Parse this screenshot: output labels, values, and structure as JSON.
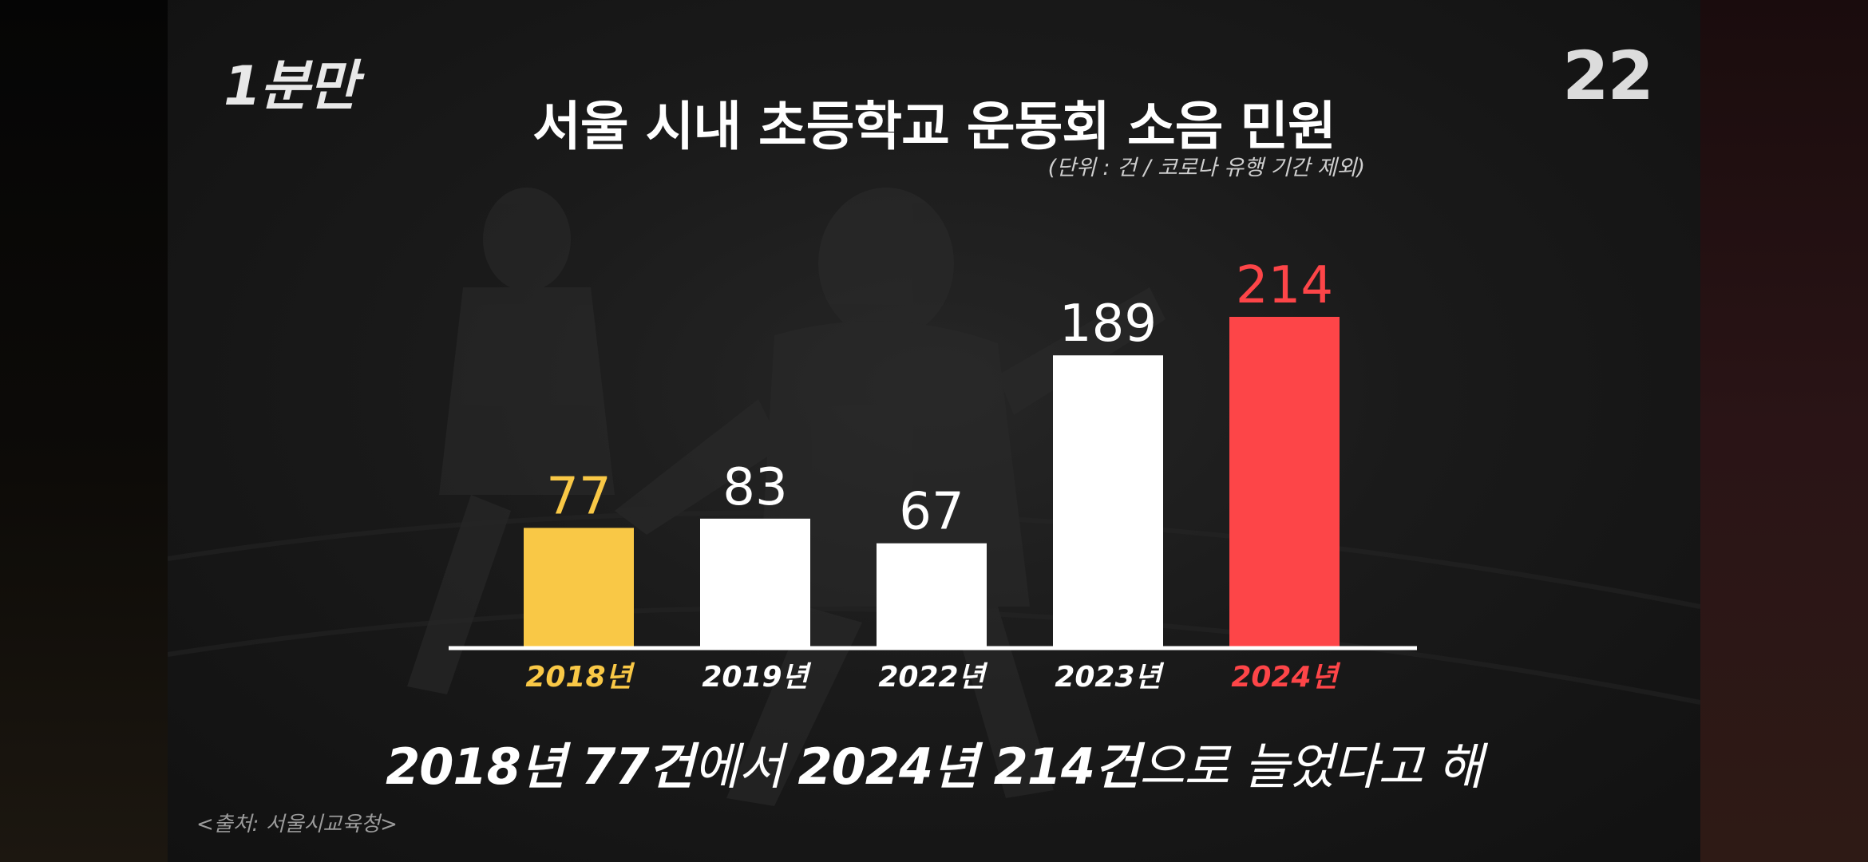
{
  "header": {
    "logo_text": "1분만",
    "episode_number": "22"
  },
  "chart_data": {
    "type": "bar",
    "title": "서울 시내 초등학교 운동회 소음 민원",
    "unit_note": "(단위 : 건 / 코로나 유행 기간 제외)",
    "categories": [
      "2018년",
      "2019년",
      "2022년",
      "2023년",
      "2024년"
    ],
    "values": [
      77,
      83,
      67,
      189,
      214
    ],
    "bar_colors": [
      "#f9c846",
      "#ffffff",
      "#ffffff",
      "#ffffff",
      "#fd4548"
    ],
    "label_colors": [
      "#f9c846",
      "#ffffff",
      "#ffffff",
      "#ffffff",
      "#fd4548"
    ],
    "ylim": [
      0,
      250
    ],
    "grid": false
  },
  "caption": {
    "part1": "2018년 77건",
    "part2": "에서 ",
    "part3": "2024년 214건",
    "part4": "으로 늘었다고 해"
  },
  "source": "<출처: 서울시교육청>"
}
